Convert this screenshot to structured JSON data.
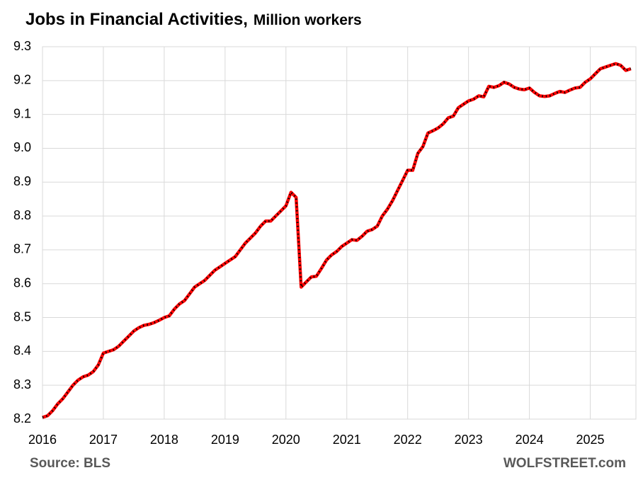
{
  "chart_data": {
    "type": "line",
    "title": "Jobs in Financial Activities,",
    "subtitle": "Million workers",
    "source": "Source: BLS",
    "credit": "WOLFSTREET.com",
    "xlim": [
      2016,
      2025.75
    ],
    "xticks": [
      2016,
      2017,
      2018,
      2019,
      2020,
      2021,
      2022,
      2023,
      2024,
      2025
    ],
    "ylim": [
      8.2,
      9.3
    ],
    "yticks": [
      8.2,
      8.3,
      8.4,
      8.5,
      8.6,
      8.7,
      8.8,
      8.9,
      {
        "value": 9,
        "label": "9.0"
      },
      9.1,
      9.2,
      9.3
    ],
    "grid": true,
    "x": [
      2016,
      2016.083,
      2016.167,
      2016.25,
      2016.333,
      2016.417,
      2016.5,
      2016.583,
      2016.667,
      2016.75,
      2016.833,
      2016.917,
      2017,
      2017.083,
      2017.167,
      2017.25,
      2017.333,
      2017.417,
      2017.5,
      2017.583,
      2017.667,
      2017.75,
      2017.833,
      2017.917,
      2018,
      2018.083,
      2018.167,
      2018.25,
      2018.333,
      2018.417,
      2018.5,
      2018.583,
      2018.667,
      2018.75,
      2018.833,
      2018.917,
      2019,
      2019.083,
      2019.167,
      2019.25,
      2019.333,
      2019.417,
      2019.5,
      2019.583,
      2019.667,
      2019.75,
      2019.833,
      2019.917,
      2020,
      2020.083,
      2020.167,
      2020.25,
      2020.333,
      2020.417,
      2020.5,
      2020.583,
      2020.667,
      2020.75,
      2020.833,
      2020.917,
      2021,
      2021.083,
      2021.167,
      2021.25,
      2021.333,
      2021.417,
      2021.5,
      2021.583,
      2021.667,
      2021.75,
      2021.833,
      2021.917,
      2022,
      2022.083,
      2022.167,
      2022.25,
      2022.333,
      2022.417,
      2022.5,
      2022.583,
      2022.667,
      2022.75,
      2022.833,
      2022.917,
      2023,
      2023.083,
      2023.167,
      2023.25,
      2023.333,
      2023.417,
      2023.5,
      2023.583,
      2023.667,
      2023.75,
      2023.833,
      2023.917,
      2024,
      2024.083,
      2024.167,
      2024.25,
      2024.333,
      2024.417,
      2024.5,
      2024.583,
      2024.667,
      2024.75,
      2024.833,
      2024.917,
      2025,
      2025.083,
      2025.167,
      2025.25,
      2025.333,
      2025.417,
      2025.5,
      2025.583,
      2025.667
    ],
    "series": [
      {
        "name": "Jobs in Financial Activities",
        "color": "#ff0000",
        "values": [
          8.205,
          8.21,
          8.225,
          8.245,
          8.26,
          8.28,
          8.3,
          8.315,
          8.325,
          8.33,
          8.34,
          8.36,
          8.395,
          8.4,
          8.405,
          8.415,
          8.43,
          8.445,
          8.46,
          8.47,
          8.477,
          8.48,
          8.485,
          8.492,
          8.5,
          8.505,
          8.525,
          8.54,
          8.55,
          8.57,
          8.59,
          8.6,
          8.61,
          8.625,
          8.64,
          8.65,
          8.66,
          8.67,
          8.68,
          8.7,
          8.72,
          8.735,
          8.75,
          8.77,
          8.785,
          8.785,
          8.8,
          8.815,
          8.83,
          8.87,
          8.855,
          8.59,
          8.605,
          8.62,
          8.622,
          8.645,
          8.67,
          8.685,
          8.695,
          8.71,
          8.72,
          8.73,
          8.728,
          8.74,
          8.755,
          8.76,
          8.77,
          8.8,
          8.82,
          8.845,
          8.875,
          8.905,
          8.935,
          8.935,
          8.985,
          9.005,
          9.045,
          9.052,
          9.06,
          9.072,
          9.09,
          9.095,
          9.12,
          9.13,
          9.14,
          9.145,
          9.155,
          9.152,
          9.183,
          9.18,
          9.185,
          9.195,
          9.19,
          9.18,
          9.175,
          9.173,
          9.178,
          9.165,
          9.155,
          9.153,
          9.155,
          9.162,
          9.168,
          9.165,
          9.172,
          9.178,
          9.18,
          9.195,
          9.205,
          9.22,
          9.235,
          9.24,
          9.245,
          9.25,
          9.245,
          9.23,
          9.235
        ]
      }
    ]
  }
}
